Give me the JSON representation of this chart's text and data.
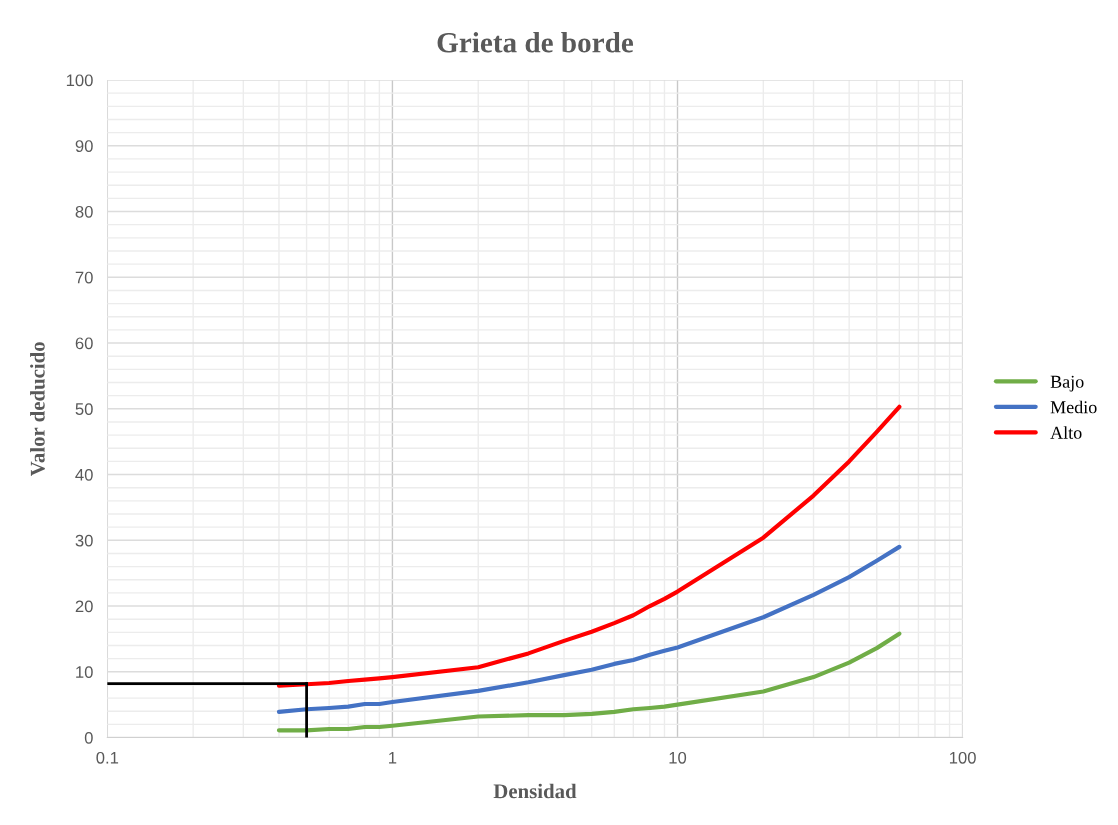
{
  "chart_data": {
    "type": "line",
    "title": "Grieta de borde",
    "xlabel": "Densidad",
    "ylabel": "Valor deducido",
    "log": "x",
    "xlim": [
      0.1,
      100
    ],
    "xticks": [
      0.1,
      1,
      10,
      100
    ],
    "ylim": [
      0,
      100
    ],
    "yticks": [
      0,
      10,
      20,
      30,
      40,
      50,
      60,
      70,
      80,
      90,
      100
    ],
    "grid": true,
    "legend": "right",
    "marker": "none",
    "line_style": "solid",
    "x": [
      0.4,
      0.5,
      0.6,
      0.7,
      0.8,
      0.9,
      1,
      2,
      3,
      4,
      5,
      6,
      7,
      8,
      9,
      10,
      20,
      30,
      40,
      50,
      60
    ],
    "series": [
      {
        "name": "Bajo",
        "color": "#70ad47",
        "values": [
          1.1,
          1.1,
          1.3,
          1.3,
          1.6,
          1.6,
          1.8,
          3.2,
          3.4,
          3.4,
          3.6,
          3.9,
          4.3,
          4.5,
          4.7,
          5.0,
          7.0,
          9.2,
          11.4,
          13.6,
          15.8
        ]
      },
      {
        "name": "Medio",
        "color": "#4472c4",
        "values": [
          3.9,
          4.3,
          4.5,
          4.7,
          5.1,
          5.1,
          5.4,
          7.1,
          8.4,
          9.5,
          10.3,
          11.2,
          11.8,
          12.6,
          13.2,
          13.7,
          18.3,
          21.7,
          24.4,
          26.9,
          29.0
        ]
      },
      {
        "name": "Alto",
        "color": "#ff0000",
        "values": [
          7.9,
          8.1,
          8.3,
          8.6,
          8.8,
          9.0,
          9.2,
          10.7,
          12.8,
          14.7,
          16.1,
          17.4,
          18.6,
          20.0,
          21.1,
          22.2,
          30.4,
          36.8,
          42.0,
          46.5,
          50.3
        ]
      }
    ],
    "ref_lines": [
      {
        "axis": "y",
        "value": 8.2,
        "color": "#000000",
        "line_style": "solid"
      },
      {
        "axis": "x",
        "value": 0.5,
        "color": "#000000",
        "line_style": "solid"
      }
    ]
  }
}
